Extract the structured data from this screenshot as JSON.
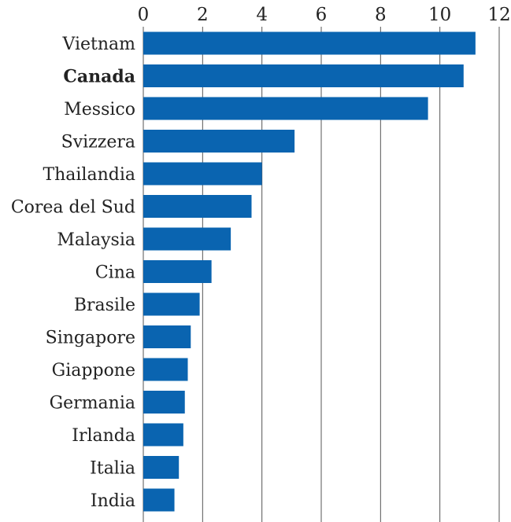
{
  "chart_data": {
    "type": "bar",
    "orientation": "horizontal",
    "title": "",
    "xlabel": "",
    "ylabel": "",
    "xlim": [
      0,
      12
    ],
    "ticks": [
      "0",
      "2",
      "4",
      "6",
      "8",
      "10",
      "12"
    ],
    "tick_values": [
      0,
      2,
      4,
      6,
      8,
      10,
      12
    ],
    "grid": true,
    "bar_color": "#0a64b0",
    "highlight": "Canada",
    "categories": [
      "Vietnam",
      "Canada",
      "Messico",
      "Svizzera",
      "Thailandia",
      "Corea del Sud",
      "Malaysia",
      "Cina",
      "Brasile",
      "Singapore",
      "Giappone",
      "Germania",
      "Irlanda",
      "Italia",
      "India"
    ],
    "values": [
      11.2,
      10.8,
      9.6,
      5.1,
      4.0,
      3.65,
      2.95,
      2.3,
      1.9,
      1.6,
      1.5,
      1.4,
      1.35,
      1.2,
      1.05
    ]
  }
}
